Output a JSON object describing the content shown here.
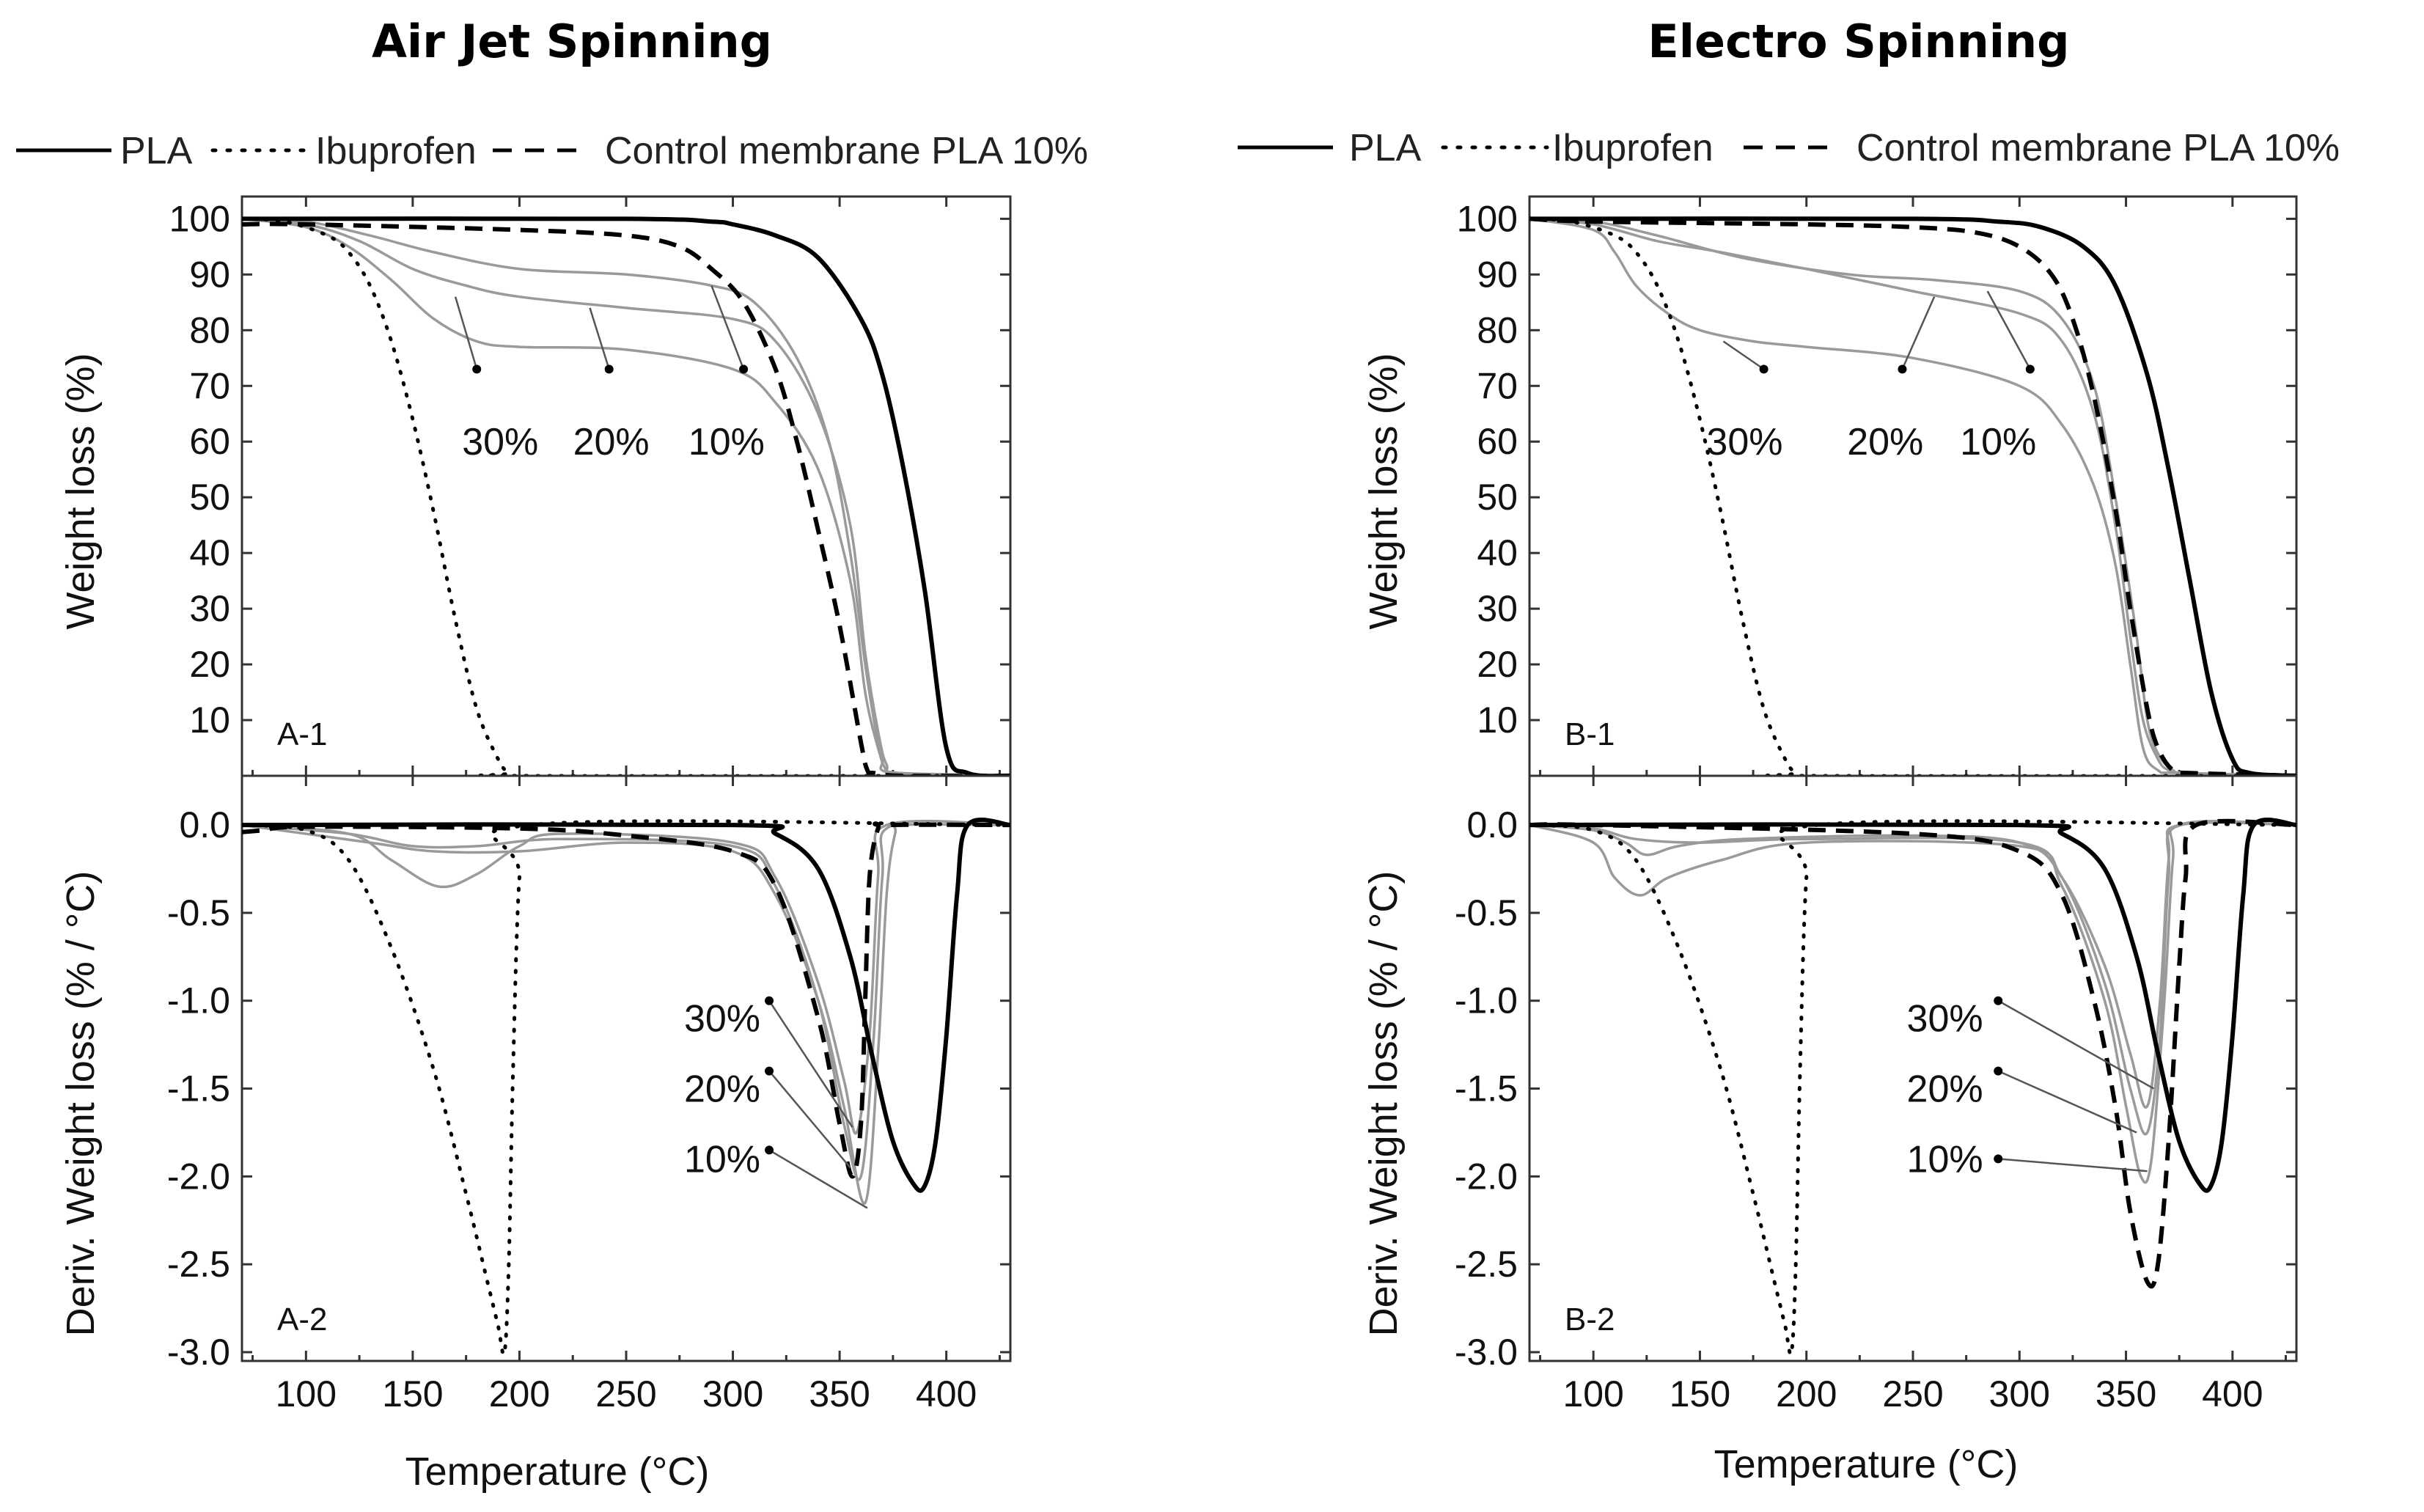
{
  "figure": {
    "left_title": "Air Jet Spinning",
    "right_title": "Electro Spinning"
  },
  "legend": {
    "pla": "PLA",
    "ibuprofen": "Ibuprofen",
    "control": "Control membrane PLA 10%"
  },
  "axes": {
    "x_label": "Temperature (°C)",
    "top_y_label": "Weight loss (%)",
    "bottom_y_label": "Deriv. Weight loss (% / °C)",
    "x_ticks": [
      "100",
      "150",
      "200",
      "250",
      "300",
      "350",
      "400"
    ],
    "top_y_ticks": [
      "100",
      "90",
      "80",
      "70",
      "60",
      "50",
      "40",
      "30",
      "20",
      "10"
    ],
    "bottom_y_ticks": [
      "0.0",
      "-0.5",
      "-1.0",
      "-1.5",
      "-2.0",
      "-2.5",
      "-3.0"
    ]
  },
  "colors": {
    "black": "#000000",
    "grey": "#9a9a9a"
  },
  "chart_data": [
    {
      "id": "A-1",
      "panel_label": "A-1",
      "type": "line",
      "xlim": [
        70,
        430
      ],
      "ylim": [
        0,
        104
      ],
      "pct_labels": [
        "30%",
        "20%",
        "10%"
      ],
      "series": [
        {
          "name": "PLA",
          "style": "solid",
          "x": [
            70,
            250,
            290,
            300,
            320,
            340,
            360,
            370,
            380,
            390,
            400,
            410,
            430
          ],
          "y": [
            100,
            100,
            99.5,
            99,
            97,
            93,
            82,
            72,
            55,
            33,
            5,
            0.5,
            0
          ]
        },
        {
          "name": "Ibuprofen",
          "style": "dotted",
          "x": [
            70,
            90,
            110,
            120,
            130,
            140,
            150,
            160,
            170,
            180,
            190,
            195,
            200,
            430
          ],
          "y": [
            100,
            99.5,
            97,
            94,
            88,
            78,
            64,
            47,
            28,
            12,
            3,
            0.5,
            0,
            0
          ]
        },
        {
          "name": "Control membrane PLA 10%",
          "style": "dashed",
          "x": [
            70,
            100,
            200,
            250,
            275,
            290,
            305,
            320,
            330,
            340,
            350,
            360,
            363,
            366,
            380,
            430
          ],
          "y": [
            99,
            99,
            98,
            97,
            95,
            91,
            85,
            73,
            60,
            44,
            27,
            6,
            1,
            0.5,
            0,
            0
          ]
        },
        {
          "name": "10%",
          "style": "grey",
          "x": [
            70,
            100,
            130,
            160,
            200,
            250,
            290,
            310,
            330,
            345,
            355,
            362,
            367,
            370,
            375,
            430
          ],
          "y": [
            100,
            99.5,
            97,
            94,
            91,
            90,
            88,
            85,
            75,
            60,
            40,
            20,
            8,
            3,
            0.5,
            0
          ]
        },
        {
          "name": "20%",
          "style": "grey",
          "x": [
            70,
            100,
            125,
            150,
            175,
            200,
            250,
            300,
            320,
            340,
            355,
            362,
            368,
            372,
            378,
            430
          ],
          "y": [
            100,
            99,
            96,
            91,
            88,
            86,
            84,
            82,
            78,
            65,
            45,
            22,
            8,
            2,
            0.5,
            0
          ]
        },
        {
          "name": "30%",
          "style": "grey",
          "x": [
            70,
            100,
            120,
            140,
            160,
            180,
            200,
            250,
            300,
            320,
            340,
            355,
            362,
            368,
            372,
            378,
            430
          ],
          "y": [
            100,
            98.5,
            95,
            89,
            82,
            78,
            77,
            76.5,
            73,
            67,
            55,
            35,
            15,
            5,
            1,
            0.5,
            0
          ]
        }
      ]
    },
    {
      "id": "A-2",
      "panel_label": "A-2",
      "type": "line",
      "xlim": [
        70,
        430
      ],
      "ylim": [
        -3.05,
        0.28
      ],
      "pct_labels": [
        "30%",
        "20%",
        "10%"
      ],
      "series": [
        {
          "name": "PLA",
          "style": "solid",
          "x": [
            70,
            300,
            320,
            340,
            355,
            365,
            375,
            385,
            390,
            395,
            400,
            405,
            410,
            430
          ],
          "y": [
            0,
            0,
            -0.05,
            -0.25,
            -0.75,
            -1.3,
            -1.8,
            -2.05,
            -2.05,
            -1.8,
            -1.2,
            -0.4,
            0,
            0
          ]
        },
        {
          "name": "Ibuprofen",
          "style": "dotted",
          "x": [
            70,
            100,
            120,
            140,
            160,
            175,
            185,
            190,
            193,
            195,
            197,
            200,
            205,
            430
          ],
          "y": [
            0,
            -0.03,
            -0.2,
            -0.7,
            -1.4,
            -2.1,
            -2.6,
            -2.85,
            -3.0,
            -2.5,
            -1.4,
            -0.3,
            0,
            0
          ]
        },
        {
          "name": "Control membrane PLA 10%",
          "style": "dashed",
          "x": [
            70,
            80,
            100,
            200,
            250,
            300,
            320,
            340,
            350,
            356,
            360,
            362,
            364,
            368,
            372,
            430
          ],
          "y": [
            -0.04,
            -0.03,
            -0.01,
            -0.02,
            -0.06,
            -0.15,
            -0.35,
            -1.1,
            -1.7,
            -2.0,
            -1.7,
            -1.0,
            -0.3,
            -0.02,
            0,
            0
          ]
        },
        {
          "name": "10%",
          "style": "grey",
          "x": [
            70,
            130,
            160,
            200,
            250,
            300,
            320,
            340,
            352,
            362,
            368,
            372,
            376,
            380,
            430
          ],
          "y": [
            0,
            -0.1,
            -0.15,
            -0.15,
            -0.1,
            -0.15,
            -0.4,
            -1.0,
            -1.6,
            -2.15,
            -1.3,
            -0.4,
            -0.05,
            0,
            0
          ]
        },
        {
          "name": "20%",
          "style": "grey",
          "x": [
            70,
            120,
            150,
            180,
            220,
            300,
            320,
            340,
            352,
            360,
            366,
            370,
            375,
            430
          ],
          "y": [
            0,
            -0.05,
            -0.12,
            -0.12,
            -0.08,
            -0.12,
            -0.35,
            -1.0,
            -1.7,
            -2.0,
            -1.2,
            -0.3,
            0,
            0
          ]
        },
        {
          "name": "30%",
          "style": "grey",
          "x": [
            70,
            120,
            140,
            162,
            180,
            200,
            220,
            300,
            320,
            340,
            352,
            358,
            364,
            368,
            372,
            430
          ],
          "y": [
            0,
            -0.05,
            -0.2,
            -0.35,
            -0.28,
            -0.12,
            -0.05,
            -0.1,
            -0.3,
            -0.9,
            -1.45,
            -1.75,
            -1.2,
            -0.3,
            0,
            0
          ]
        }
      ]
    },
    {
      "id": "B-1",
      "panel_label": "B-1",
      "type": "line",
      "xlim": [
        70,
        430
      ],
      "ylim": [
        0,
        104
      ],
      "pct_labels": [
        "30%",
        "20%",
        "10%"
      ],
      "series": [
        {
          "name": "PLA",
          "style": "solid",
          "x": [
            70,
            250,
            290,
            310,
            330,
            345,
            360,
            370,
            380,
            390,
            400,
            408,
            430
          ],
          "y": [
            100,
            100,
            99.5,
            98.5,
            95,
            88,
            72,
            55,
            35,
            15,
            3,
            0.5,
            0
          ]
        },
        {
          "name": "Ibuprofen",
          "style": "dotted",
          "x": [
            70,
            90,
            110,
            120,
            130,
            140,
            150,
            160,
            170,
            180,
            190,
            195,
            200,
            430
          ],
          "y": [
            100,
            99.5,
            97,
            94,
            88,
            78,
            64,
            47,
            28,
            12,
            3,
            0.5,
            0,
            0
          ]
        },
        {
          "name": "Control membrane PLA 10%",
          "style": "dashed",
          "x": [
            70,
            100,
            200,
            250,
            280,
            300,
            315,
            325,
            335,
            345,
            352,
            360,
            365,
            372,
            380,
            430
          ],
          "y": [
            100,
            99.5,
            99,
            98.5,
            97.5,
            95,
            90,
            82,
            68,
            48,
            30,
            12,
            5,
            1,
            0.5,
            0
          ]
        },
        {
          "name": "10%",
          "style": "grey",
          "x": [
            70,
            100,
            130,
            170,
            220,
            260,
            300,
            320,
            335,
            345,
            355,
            360,
            365,
            372,
            380,
            430
          ],
          "y": [
            100,
            99.5,
            97,
            93,
            90,
            89,
            87,
            82,
            70,
            50,
            25,
            10,
            4,
            1,
            0.5,
            0
          ]
        },
        {
          "name": "20%",
          "style": "grey",
          "x": [
            70,
            100,
            130,
            160,
            200,
            250,
            300,
            320,
            335,
            345,
            352,
            358,
            365,
            370,
            378,
            430
          ],
          "y": [
            100,
            99,
            96,
            94,
            91,
            87,
            83,
            78,
            65,
            45,
            25,
            10,
            3,
            1,
            0.5,
            0
          ]
        },
        {
          "name": "30%",
          "style": "grey",
          "x": [
            70,
            100,
            110,
            120,
            135,
            150,
            175,
            200,
            250,
            300,
            320,
            335,
            345,
            352,
            358,
            365,
            375,
            430
          ],
          "y": [
            100,
            98,
            94,
            88,
            83,
            80,
            78,
            77,
            75,
            70,
            63,
            52,
            38,
            20,
            5,
            1,
            0.5,
            0
          ]
        }
      ]
    },
    {
      "id": "B-2",
      "panel_label": "B-2",
      "type": "line",
      "xlim": [
        70,
        430
      ],
      "ylim": [
        -3.05,
        0.28
      ],
      "pct_labels": [
        "30%",
        "20%",
        "10%"
      ],
      "series": [
        {
          "name": "PLA",
          "style": "solid",
          "x": [
            70,
            300,
            320,
            340,
            355,
            365,
            375,
            385,
            390,
            395,
            400,
            405,
            410,
            430
          ],
          "y": [
            0,
            0,
            -0.05,
            -0.25,
            -0.75,
            -1.3,
            -1.8,
            -2.05,
            -2.05,
            -1.8,
            -1.2,
            -0.4,
            0,
            0
          ]
        },
        {
          "name": "Ibuprofen",
          "style": "dotted",
          "x": [
            70,
            100,
            120,
            140,
            160,
            175,
            185,
            190,
            193,
            195,
            197,
            200,
            205,
            430
          ],
          "y": [
            0,
            -0.03,
            -0.2,
            -0.7,
            -1.4,
            -2.1,
            -2.6,
            -2.85,
            -3.0,
            -2.5,
            -1.4,
            -0.3,
            0,
            0
          ]
        },
        {
          "name": "Control membrane PLA 10%",
          "style": "dashed",
          "x": [
            70,
            100,
            250,
            300,
            320,
            335,
            345,
            352,
            360,
            365,
            370,
            375,
            378,
            383,
            430
          ],
          "y": [
            0,
            0,
            -0.05,
            -0.15,
            -0.4,
            -1.0,
            -1.6,
            -2.2,
            -2.6,
            -2.5,
            -1.8,
            -0.8,
            -0.3,
            0,
            0
          ]
        },
        {
          "name": "10%",
          "style": "grey",
          "x": [
            70,
            100,
            120,
            150,
            200,
            300,
            320,
            340,
            350,
            357,
            362,
            368,
            372,
            376,
            430
          ],
          "y": [
            0,
            -0.02,
            -0.08,
            -0.1,
            -0.08,
            -0.1,
            -0.35,
            -1.0,
            -1.6,
            -2.0,
            -1.9,
            -1.0,
            -0.2,
            0,
            0
          ]
        },
        {
          "name": "20%",
          "style": "grey",
          "x": [
            70,
            100,
            115,
            125,
            140,
            170,
            250,
            300,
            320,
            340,
            352,
            360,
            366,
            370,
            375,
            430
          ],
          "y": [
            0,
            -0.03,
            -0.1,
            -0.17,
            -0.12,
            -0.08,
            -0.06,
            -0.1,
            -0.3,
            -0.9,
            -1.5,
            -1.75,
            -1.2,
            -0.3,
            0,
            0
          ]
        },
        {
          "name": "30%",
          "style": "grey",
          "x": [
            70,
            100,
            110,
            122,
            135,
            160,
            200,
            300,
            320,
            340,
            352,
            360,
            366,
            370,
            375,
            430
          ],
          "y": [
            0,
            -0.1,
            -0.3,
            -0.4,
            -0.3,
            -0.2,
            -0.1,
            -0.12,
            -0.3,
            -0.8,
            -1.3,
            -1.6,
            -1.0,
            -0.2,
            0,
            0
          ]
        }
      ]
    }
  ]
}
